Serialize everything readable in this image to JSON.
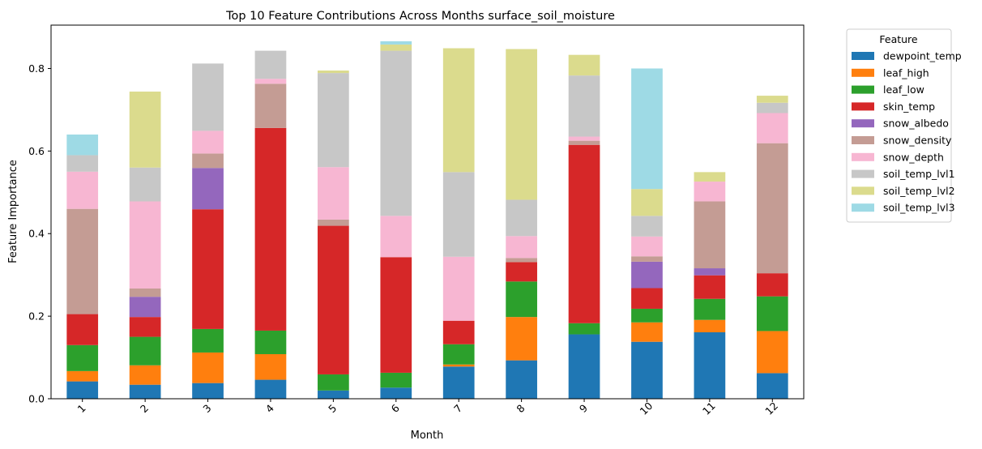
{
  "chart_data": {
    "type": "bar",
    "stacked": true,
    "title": "Top 10 Feature Contributions Across Months surface_soil_moisture",
    "xlabel": "Month",
    "ylabel": "Feature Importance",
    "ylim": [
      0,
      0.905
    ],
    "yticks": [
      0.0,
      0.2,
      0.4,
      0.6,
      0.8
    ],
    "grid": false,
    "legend_title": "Feature",
    "legend_placement": "outside-right-top",
    "categories": [
      "1",
      "2",
      "3",
      "4",
      "5",
      "6",
      "7",
      "8",
      "9",
      "10",
      "11",
      "12"
    ],
    "series": [
      {
        "name": "dewpoint_temp",
        "color": "#1f77b4",
        "values": [
          0.042,
          0.034,
          0.038,
          0.046,
          0.02,
          0.027,
          0.078,
          0.093,
          0.156,
          0.138,
          0.161,
          0.062
        ]
      },
      {
        "name": "leaf_high",
        "color": "#ff7f0e",
        "values": [
          0.025,
          0.047,
          0.074,
          0.062,
          0.0,
          0.0,
          0.005,
          0.105,
          0.0,
          0.047,
          0.03,
          0.102
        ]
      },
      {
        "name": "leaf_low",
        "color": "#2ca02c",
        "values": [
          0.063,
          0.069,
          0.057,
          0.057,
          0.039,
          0.036,
          0.049,
          0.086,
          0.027,
          0.033,
          0.051,
          0.084
        ]
      },
      {
        "name": "skin_temp",
        "color": "#d62728",
        "values": [
          0.075,
          0.048,
          0.29,
          0.491,
          0.36,
          0.28,
          0.057,
          0.047,
          0.432,
          0.05,
          0.057,
          0.056
        ]
      },
      {
        "name": "snow_albedo",
        "color": "#9467bd",
        "values": [
          0.0,
          0.049,
          0.1,
          0.0,
          0.0,
          0.0,
          0.0,
          0.0,
          0.0,
          0.064,
          0.017,
          0.0
        ]
      },
      {
        "name": "snow_density",
        "color": "#c49c94",
        "values": [
          0.255,
          0.02,
          0.035,
          0.107,
          0.015,
          0.0,
          0.0,
          0.01,
          0.01,
          0.013,
          0.162,
          0.315
        ]
      },
      {
        "name": "snow_depth",
        "color": "#f7b6d2",
        "values": [
          0.09,
          0.211,
          0.055,
          0.012,
          0.127,
          0.1,
          0.155,
          0.053,
          0.01,
          0.048,
          0.048,
          0.073
        ]
      },
      {
        "name": "soil_temp_lvl1",
        "color": "#c7c7c7",
        "values": [
          0.04,
          0.082,
          0.163,
          0.068,
          0.228,
          0.4,
          0.205,
          0.088,
          0.148,
          0.05,
          0.0,
          0.025
        ]
      },
      {
        "name": "soil_temp_lvl2",
        "color": "#dbdb8d",
        "values": [
          0.0,
          0.184,
          0.0,
          0.0,
          0.006,
          0.015,
          0.3,
          0.365,
          0.05,
          0.065,
          0.023,
          0.017
        ]
      },
      {
        "name": "soil_temp_lvl3",
        "color": "#9edae5",
        "values": [
          0.05,
          0.0,
          0.0,
          0.0,
          0.0,
          0.008,
          0.0,
          0.0,
          0.0,
          0.292,
          0.0,
          0.0
        ]
      }
    ]
  }
}
